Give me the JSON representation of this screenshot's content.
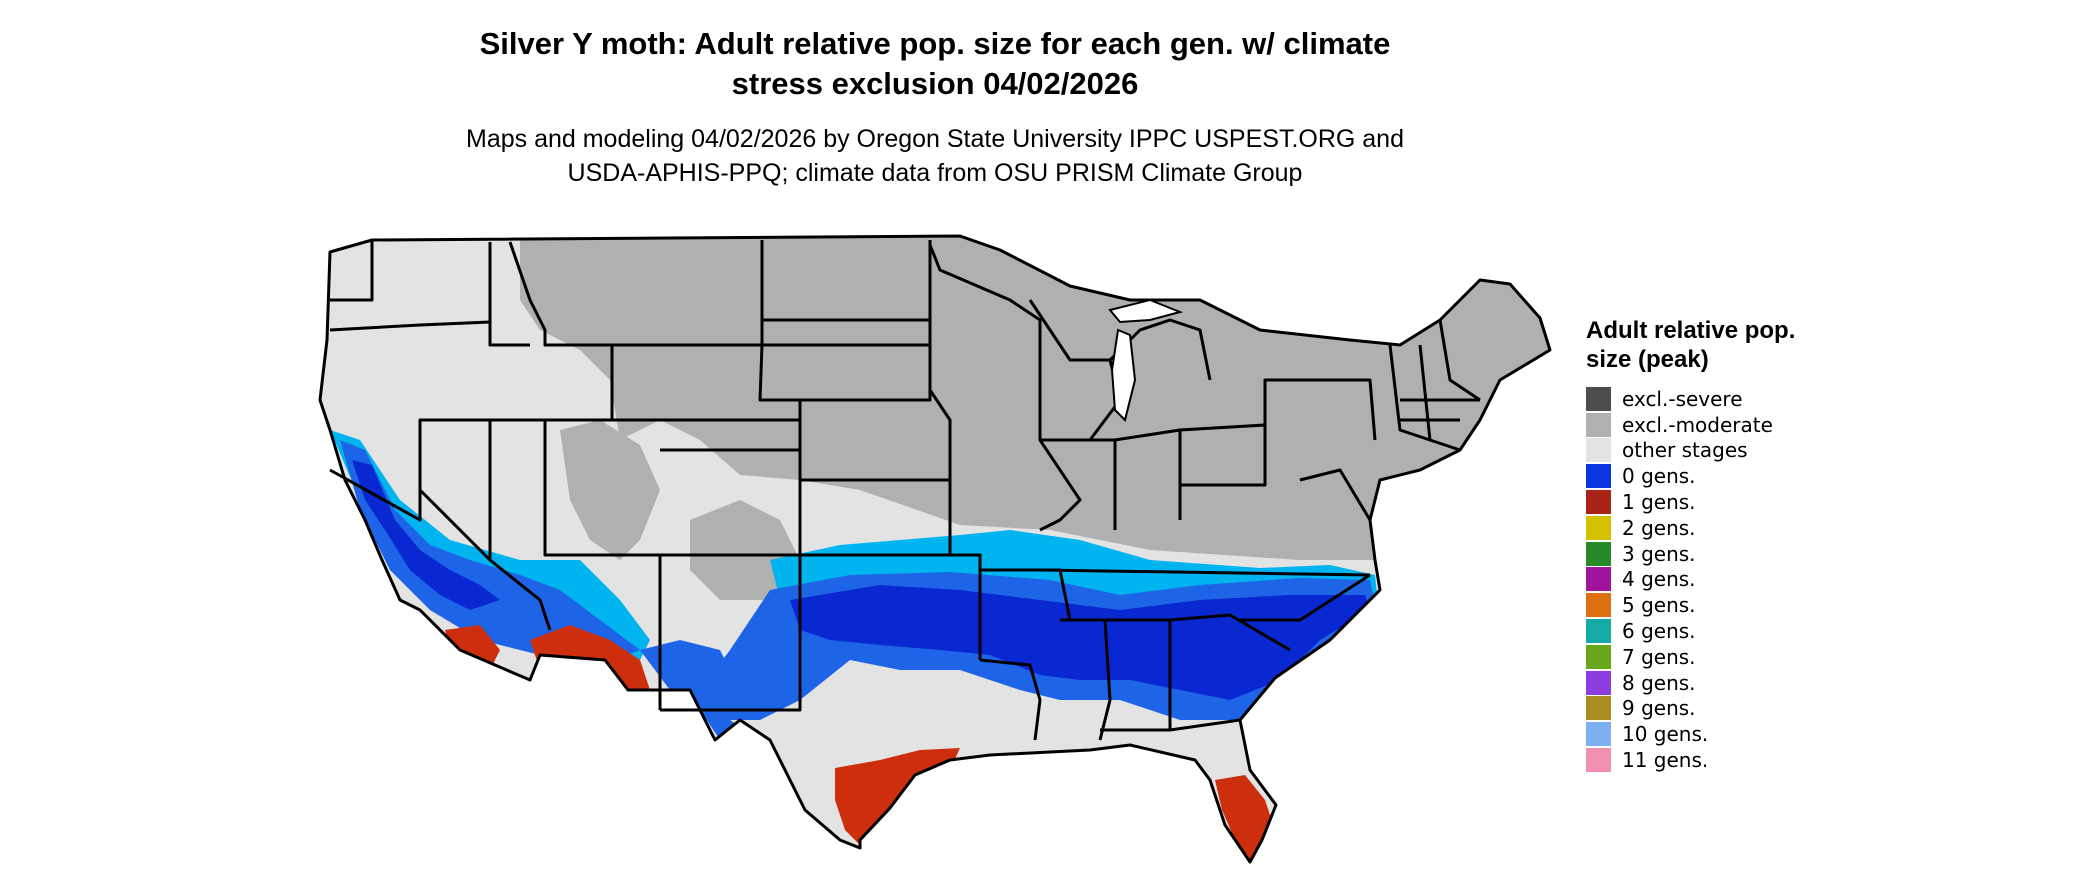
{
  "title_line1": "Silver Y moth: Adult relative pop. size for each gen. w/ climate",
  "title_line2": "stress exclusion 04/02/2026",
  "subtitle_line1": "Maps and modeling 04/02/2026 by Oregon State University IPPC USPEST.ORG and",
  "subtitle_line2": "USDA-APHIS-PPQ; climate data from OSU PRISM Climate Group",
  "legend": {
    "title": "Adult relative pop. size (peak)",
    "items": [
      {
        "label": "excl.-severe",
        "color": "#4d4d4d"
      },
      {
        "label": "excl.-moderate",
        "color": "#b0b0b0"
      },
      {
        "label": "other stages",
        "color": "#e3e3e3"
      },
      {
        "label": "0 gens.",
        "color": "#0b35e0"
      },
      {
        "label": "1 gens.",
        "color": "#a82316"
      },
      {
        "label": "2 gens.",
        "color": "#d4c200"
      },
      {
        "label": "3 gens.",
        "color": "#268a28"
      },
      {
        "label": "4 gens.",
        "color": "#a0139c"
      },
      {
        "label": "5 gens.",
        "color": "#dd7112"
      },
      {
        "label": "6 gens.",
        "color": "#16aaa6"
      },
      {
        "label": "7 gens.",
        "color": "#6aa61c"
      },
      {
        "label": "8 gens.",
        "color": "#8c3de0"
      },
      {
        "label": "9 gens.",
        "color": "#aa8c22"
      },
      {
        "label": "10 gens.",
        "color": "#7eb0f2"
      },
      {
        "label": "11 gens.",
        "color": "#f290b0"
      }
    ]
  },
  "map_colors": {
    "light_blue": "#00b4f0",
    "medium_blue": "#1e64e6",
    "dark_blue": "#0a28d2",
    "red": "#cc2e0e",
    "border": "#000000"
  }
}
